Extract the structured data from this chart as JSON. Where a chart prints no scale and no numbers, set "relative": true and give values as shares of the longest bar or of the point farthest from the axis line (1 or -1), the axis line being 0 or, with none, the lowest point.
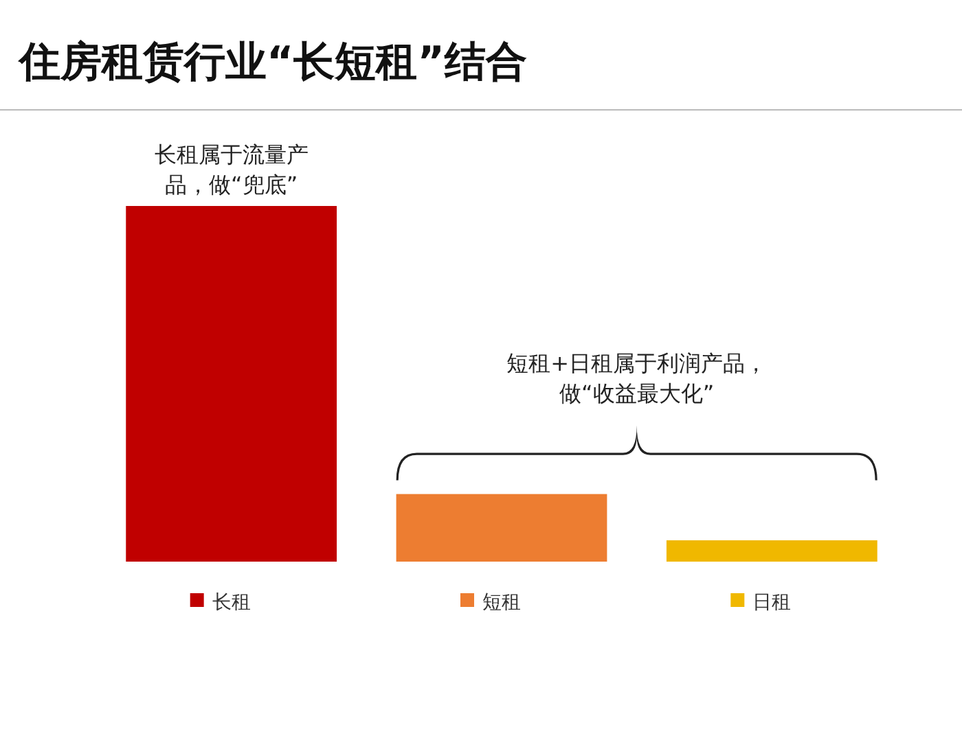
{
  "chart_data": {
    "type": "bar",
    "title": "住房租赁行业“长短租”结合",
    "relative": true,
    "categories": [
      "长租",
      "短租",
      "日租"
    ],
    "values": [
      1,
      0.19,
      0.06
    ],
    "colors": [
      "#c00000",
      "#ed7d31",
      "#f0b800"
    ],
    "annotations": [
      "长租属于流量产品，做“兜底”",
      "短租+日租属于利润产品，做“收益最大化”"
    ]
  }
}
